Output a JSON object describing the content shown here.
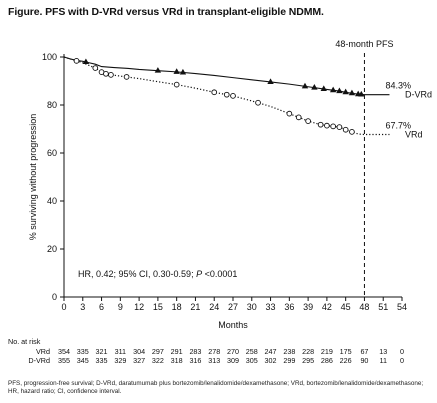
{
  "title": "Figure. PFS with D-VRd versus VRd in transplant-eligible NDMM.",
  "footnote": "PFS, progression-free survival; D-VRd, daratumumab plus bortezomib/lenalidomide/dexamethasone; VRd, bortezomib/lenalidomide/dexamethasone; HR, hazard ratio; CI, confidence interval.",
  "chart_data": {
    "type": "line",
    "title": "",
    "xlabel": "Months",
    "ylabel": "% surviving without progression",
    "xlim": [
      0,
      54
    ],
    "ylim": [
      0,
      100
    ],
    "xticks": [
      0,
      3,
      6,
      9,
      12,
      15,
      18,
      21,
      24,
      27,
      30,
      33,
      36,
      39,
      42,
      45,
      48,
      51,
      54
    ],
    "yticks": [
      0,
      20,
      40,
      60,
      80,
      100
    ],
    "grid": false,
    "reference_line": {
      "x": 48,
      "label": "48-month PFS"
    },
    "annotation_text": "HR, 0.42; 95% CI, 0.30-0.59; ",
    "annotation_p": "P",
    "annotation_p_value": " <0.0001",
    "series": [
      {
        "name": "D-VRd",
        "color": "#111111",
        "linestyle": "solid",
        "marker": "triangle",
        "endpoint_label": "84.3%",
        "x": [
          0,
          1,
          2,
          3,
          4,
          5,
          6,
          8,
          10,
          12,
          15,
          18,
          21,
          24,
          27,
          30,
          33,
          36,
          39,
          42,
          44,
          45,
          46,
          47,
          48,
          50,
          52
        ],
        "y": [
          100,
          99.2,
          98.6,
          98.2,
          97.6,
          97,
          96,
          95.6,
          95.3,
          94.8,
          94.3,
          93.8,
          93.1,
          92.3,
          91.4,
          90.5,
          89.6,
          88.7,
          87.6,
          86.5,
          85.8,
          85.3,
          84.9,
          84.5,
          84.3,
          84.3,
          84.3
        ],
        "censor_x": [
          3.5,
          15,
          18,
          19,
          33,
          38.5,
          40,
          41.5,
          43,
          44,
          45,
          46,
          47,
          47.5
        ]
      },
      {
        "name": "VRd",
        "color": "#111111",
        "linestyle": "dotted",
        "marker": "circle",
        "endpoint_label": "67.7%",
        "x": [
          0,
          1,
          2,
          3,
          4,
          5,
          6,
          7,
          8,
          10,
          12,
          15,
          18,
          21,
          24,
          27,
          30,
          33,
          36,
          39,
          41,
          42,
          44,
          45,
          46,
          47,
          48,
          50,
          52
        ],
        "y": [
          100,
          99.2,
          98.4,
          97.6,
          96.5,
          95.4,
          93.7,
          92.7,
          92.4,
          91.7,
          91,
          89.7,
          88.5,
          87,
          85.3,
          83.8,
          81.7,
          79.4,
          76.4,
          73.3,
          71.8,
          71.4,
          70.8,
          69.7,
          68.8,
          67.9,
          67.7,
          67.7,
          67.7
        ],
        "censor_x": [
          2,
          5,
          6,
          6.7,
          7.5,
          10,
          18,
          24,
          26,
          27,
          31,
          36,
          37.5,
          39,
          41,
          42,
          43,
          44,
          45,
          46
        ]
      }
    ]
  },
  "risk_table": {
    "header": "No. at risk",
    "rows": [
      {
        "label": "VRd",
        "values": [
          "354",
          "335",
          "321",
          "311",
          "304",
          "297",
          "291",
          "283",
          "278",
          "270",
          "258",
          "247",
          "238",
          "228",
          "219",
          "175",
          "67",
          "13",
          "0"
        ]
      },
      {
        "label": "D-VRd",
        "values": [
          "355",
          "345",
          "335",
          "329",
          "327",
          "322",
          "318",
          "316",
          "313",
          "309",
          "305",
          "302",
          "299",
          "295",
          "286",
          "226",
          "90",
          "11",
          "0"
        ]
      }
    ]
  }
}
